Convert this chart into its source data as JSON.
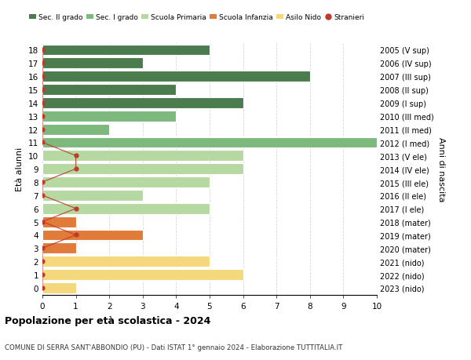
{
  "ages": [
    18,
    17,
    16,
    15,
    14,
    13,
    12,
    11,
    10,
    9,
    8,
    7,
    6,
    5,
    4,
    3,
    2,
    1,
    0
  ],
  "right_labels": [
    "2005 (V sup)",
    "2006 (IV sup)",
    "2007 (III sup)",
    "2008 (II sup)",
    "2009 (I sup)",
    "2010 (III med)",
    "2011 (II med)",
    "2012 (I med)",
    "2013 (V ele)",
    "2014 (IV ele)",
    "2015 (III ele)",
    "2016 (II ele)",
    "2017 (I ele)",
    "2018 (mater)",
    "2019 (mater)",
    "2020 (mater)",
    "2021 (nido)",
    "2022 (nido)",
    "2023 (nido)"
  ],
  "bar_values": [
    5,
    3,
    8,
    4,
    6,
    4,
    2,
    10,
    6,
    6,
    5,
    3,
    5,
    1,
    3,
    1,
    5,
    6,
    1
  ],
  "bar_colors": [
    "#4a7c4e",
    "#4a7c4e",
    "#4a7c4e",
    "#4a7c4e",
    "#4a7c4e",
    "#7db87d",
    "#7db87d",
    "#7db87d",
    "#b5d9a0",
    "#b5d9a0",
    "#b5d9a0",
    "#b5d9a0",
    "#b5d9a0",
    "#e07b39",
    "#e07b39",
    "#e07b39",
    "#f5d87c",
    "#f5d87c",
    "#f5d87c"
  ],
  "stranieri_values": [
    0,
    0,
    0,
    0,
    0,
    0,
    0,
    0,
    1,
    1,
    0,
    0,
    1,
    0,
    1,
    0,
    0,
    0,
    0
  ],
  "legend_labels": [
    "Sec. II grado",
    "Sec. I grado",
    "Scuola Primaria",
    "Scuola Infanzia",
    "Asilo Nido",
    "Stranieri"
  ],
  "legend_colors": [
    "#4a7c4e",
    "#7db87d",
    "#b5d9a0",
    "#e07b39",
    "#f5d87c",
    "#c0392b"
  ],
  "title": "Popolazione per età scolastica - 2024",
  "subtitle": "COMUNE DI SERRA SANT'ABBONDIO (PU) - Dati ISTAT 1° gennaio 2024 - Elaborazione TUTTITALIA.IT",
  "ylabel": "Età alunni",
  "right_ylabel": "Anni di nascita",
  "xlim": [
    0,
    10
  ],
  "xticks": [
    0,
    1,
    2,
    3,
    4,
    5,
    6,
    7,
    8,
    9,
    10
  ],
  "background_color": "#ffffff",
  "grid_color": "#cccccc",
  "stranieri_dot_color": "#c0392b",
  "stranieri_line_color": "#c0392b"
}
